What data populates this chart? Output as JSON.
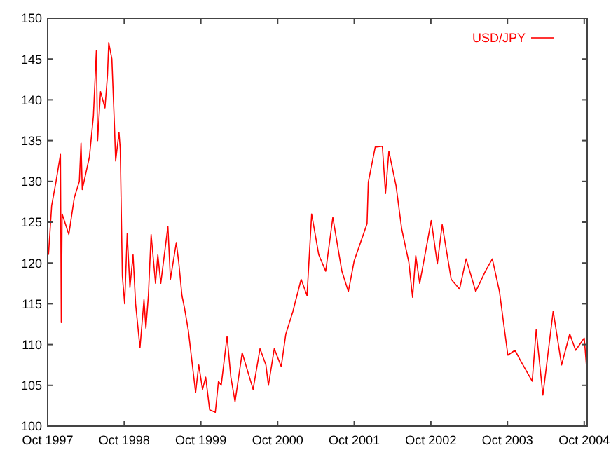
{
  "chart_data": {
    "type": "line",
    "xlim": [
      "1997-10-01",
      "2004-10-15"
    ],
    "ylim": [
      100,
      150
    ],
    "xticks": [
      {
        "value": "1997-10-01",
        "label": "Oct 1997"
      },
      {
        "value": "1998-10-01",
        "label": "Oct 1998"
      },
      {
        "value": "1999-10-01",
        "label": "Oct 1999"
      },
      {
        "value": "2000-10-01",
        "label": "Oct 2000"
      },
      {
        "value": "2001-10-01",
        "label": "Oct 2001"
      },
      {
        "value": "2002-10-01",
        "label": "Oct 2002"
      },
      {
        "value": "2003-10-01",
        "label": "Oct 2003"
      },
      {
        "value": "2004-10-01",
        "label": "Oct 2004"
      }
    ],
    "yticks": [
      100,
      105,
      110,
      115,
      120,
      125,
      130,
      135,
      140,
      145,
      150
    ],
    "grid": false,
    "legend": "top right",
    "marker": "none",
    "line_style": "solid",
    "series": [
      {
        "name": "USD/JPY",
        "color": "#ff0000",
        "x": [
          "1997-10-05",
          "1997-10-20",
          "1997-11-10",
          "1997-12-01",
          "1997-12-05",
          "1997-12-09",
          "1998-01-10",
          "1998-02-05",
          "1998-03-01",
          "1998-03-09",
          "1998-03-15",
          "1998-04-18",
          "1998-05-07",
          "1998-05-21",
          "1998-05-27",
          "1998-06-10",
          "1998-07-01",
          "1998-07-13",
          "1998-07-19",
          "1998-08-03",
          "1998-08-15",
          "1998-08-21",
          "1998-09-06",
          "1998-09-12",
          "1998-09-22",
          "1998-10-03",
          "1998-10-15",
          "1998-10-28",
          "1998-11-12",
          "1998-11-24",
          "1998-12-15",
          "1999-01-03",
          "1999-01-12",
          "1999-01-24",
          "1999-02-06",
          "1999-02-27",
          "1999-03-10",
          "1999-03-24",
          "1999-04-27",
          "1999-05-09",
          "1999-06-06",
          "1999-06-18",
          "1999-07-03",
          "1999-07-15",
          "1999-08-03",
          "1999-09-06",
          "1999-09-21",
          "1999-10-09",
          "1999-10-24",
          "1999-11-12",
          "1999-12-09",
          "1999-12-24",
          "2000-01-06",
          "2000-02-03",
          "2000-02-21",
          "2000-03-12",
          "2000-04-15",
          "2000-06-06",
          "2000-07-09",
          "2000-08-06",
          "2000-08-18",
          "2000-09-15",
          "2000-10-18",
          "2000-11-09",
          "2000-12-12",
          "2001-01-21",
          "2001-02-18",
          "2001-03-12",
          "2001-04-15",
          "2001-05-18",
          "2001-06-21",
          "2001-08-03",
          "2001-09-03",
          "2001-10-01",
          "2001-12-01",
          "2001-12-07",
          "2002-01-09",
          "2002-02-12",
          "2002-02-27",
          "2002-03-15",
          "2002-04-18",
          "2002-05-15",
          "2002-06-18",
          "2002-07-06",
          "2002-07-21",
          "2002-08-09",
          "2002-10-03",
          "2002-11-01",
          "2002-11-24",
          "2003-01-06",
          "2003-02-15",
          "2003-03-18",
          "2003-05-03",
          "2003-06-18",
          "2003-07-21",
          "2003-08-24",
          "2003-09-15",
          "2003-10-03",
          "2003-11-06",
          "2003-12-03",
          "2004-01-27",
          "2004-02-15",
          "2004-03-18",
          "2004-05-06",
          "2004-06-15",
          "2004-07-24",
          "2004-08-21",
          "2004-10-01",
          "2004-10-13"
        ],
        "values": [
          121,
          127,
          130,
          133.3,
          112.7,
          126,
          123.5,
          128,
          130,
          134.7,
          129,
          133,
          138,
          146,
          135,
          141,
          139,
          143,
          147,
          145,
          137,
          132.5,
          136,
          134,
          118.4,
          115,
          123.6,
          117,
          121,
          115,
          109.6,
          115.5,
          112,
          116,
          123.5,
          117.5,
          121,
          117.5,
          124.5,
          118,
          122.5,
          120,
          116,
          114.5,
          111.6,
          104.1,
          107.5,
          104.5,
          106,
          102,
          101.7,
          105.5,
          105,
          111,
          106,
          103,
          109,
          104.5,
          109.5,
          107.5,
          105,
          109.5,
          107.3,
          111.3,
          114,
          118,
          116,
          126,
          121,
          119,
          125.6,
          119,
          116.5,
          120.3,
          124.8,
          129.9,
          134.2,
          134.3,
          128.5,
          133.7,
          129.5,
          124.2,
          120.1,
          115.8,
          120.9,
          117.5,
          125.2,
          119.9,
          124.7,
          118,
          116.8,
          120.5,
          116.5,
          119,
          120.5,
          116.5,
          112.2,
          108.7,
          109.3,
          108,
          105.5,
          111.8,
          103.8,
          114.1,
          107.5,
          111.3,
          109.3,
          110.8,
          106.9
        ]
      }
    ]
  }
}
